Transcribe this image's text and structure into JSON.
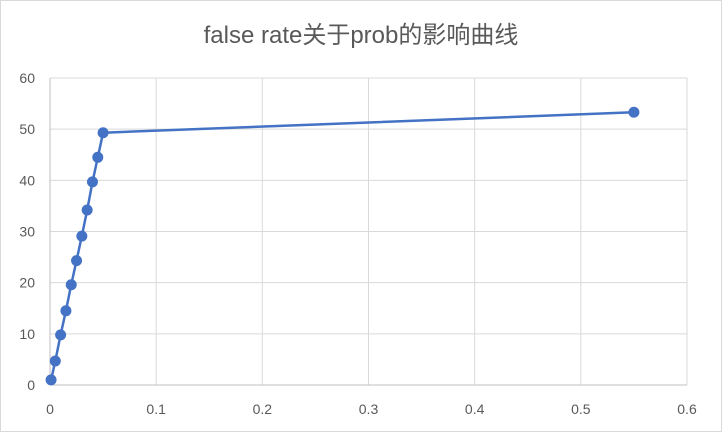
{
  "chart_data": {
    "type": "scatter",
    "title": "false rate关于prob的影响曲线",
    "xlabel": "",
    "ylabel": "",
    "xlim": [
      0,
      0.6
    ],
    "ylim": [
      0,
      60
    ],
    "x_ticks": [
      0,
      0.1,
      0.2,
      0.3,
      0.4,
      0.5,
      0.6
    ],
    "y_ticks": [
      0,
      10,
      20,
      30,
      40,
      50,
      60
    ],
    "x_tick_labels": [
      "0",
      "0.1",
      "0.2",
      "0.3",
      "0.4",
      "0.5",
      "0.6"
    ],
    "y_tick_labels": [
      "0",
      "10",
      "20",
      "30",
      "40",
      "50",
      "60"
    ],
    "grid": true,
    "legend": "none",
    "series": [
      {
        "color": "#4472c4",
        "marker": "circle",
        "lines": true,
        "x": [
          0.001,
          0.005,
          0.01,
          0.015,
          0.02,
          0.025,
          0.03,
          0.035,
          0.04,
          0.045,
          0.05,
          0.55
        ],
        "y": [
          1.0,
          4.7,
          9.8,
          14.5,
          19.6,
          24.3,
          29.1,
          34.2,
          39.7,
          44.5,
          49.3,
          53.3
        ]
      }
    ]
  }
}
